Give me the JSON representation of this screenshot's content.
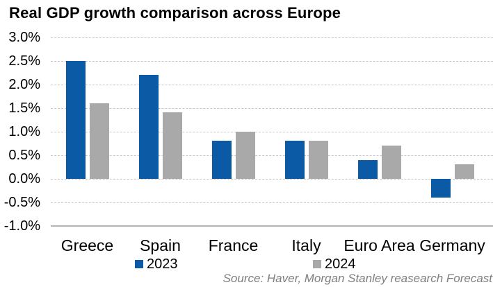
{
  "title": "Real GDP growth comparison across Europe",
  "source": "Source: Haver, Morgan Stanley reasearch Forecast",
  "colors": {
    "series_2023": "#0b5aa5",
    "series_2024": "#a9a9a9",
    "gridline": "#c7c7c7",
    "axis_line": "#b4b4b4",
    "source_text": "#7f7f7f",
    "title_text": "#000000"
  },
  "legend": [
    {
      "label": "2023",
      "color": "#0b5aa5"
    },
    {
      "label": "2024",
      "color": "#a9a9a9"
    }
  ],
  "chart_data": {
    "type": "bar",
    "title": "Real GDP growth comparison across Europe",
    "categories": [
      "Greece",
      "Spain",
      "France",
      "Italy",
      "Euro Area",
      "Germany"
    ],
    "series": [
      {
        "name": "2023",
        "color": "#0b5aa5",
        "values": [
          2.5,
          2.2,
          0.8,
          0.8,
          0.4,
          -0.4
        ]
      },
      {
        "name": "2024",
        "color": "#a9a9a9",
        "values": [
          1.6,
          1.4,
          1.0,
          0.8,
          0.7,
          0.3
        ]
      }
    ],
    "xlabel": "",
    "ylabel": "",
    "ylim": [
      -1.0,
      3.0
    ],
    "ytick_step": 0.5,
    "ytick_labels": [
      "3.0%",
      "2.5%",
      "2.0%",
      "1.5%",
      "1.0%",
      "0.5%",
      "0.0%",
      "-0.5%",
      "-1.0%"
    ],
    "grid": "horizontal-dashed",
    "legend_position": "bottom"
  }
}
